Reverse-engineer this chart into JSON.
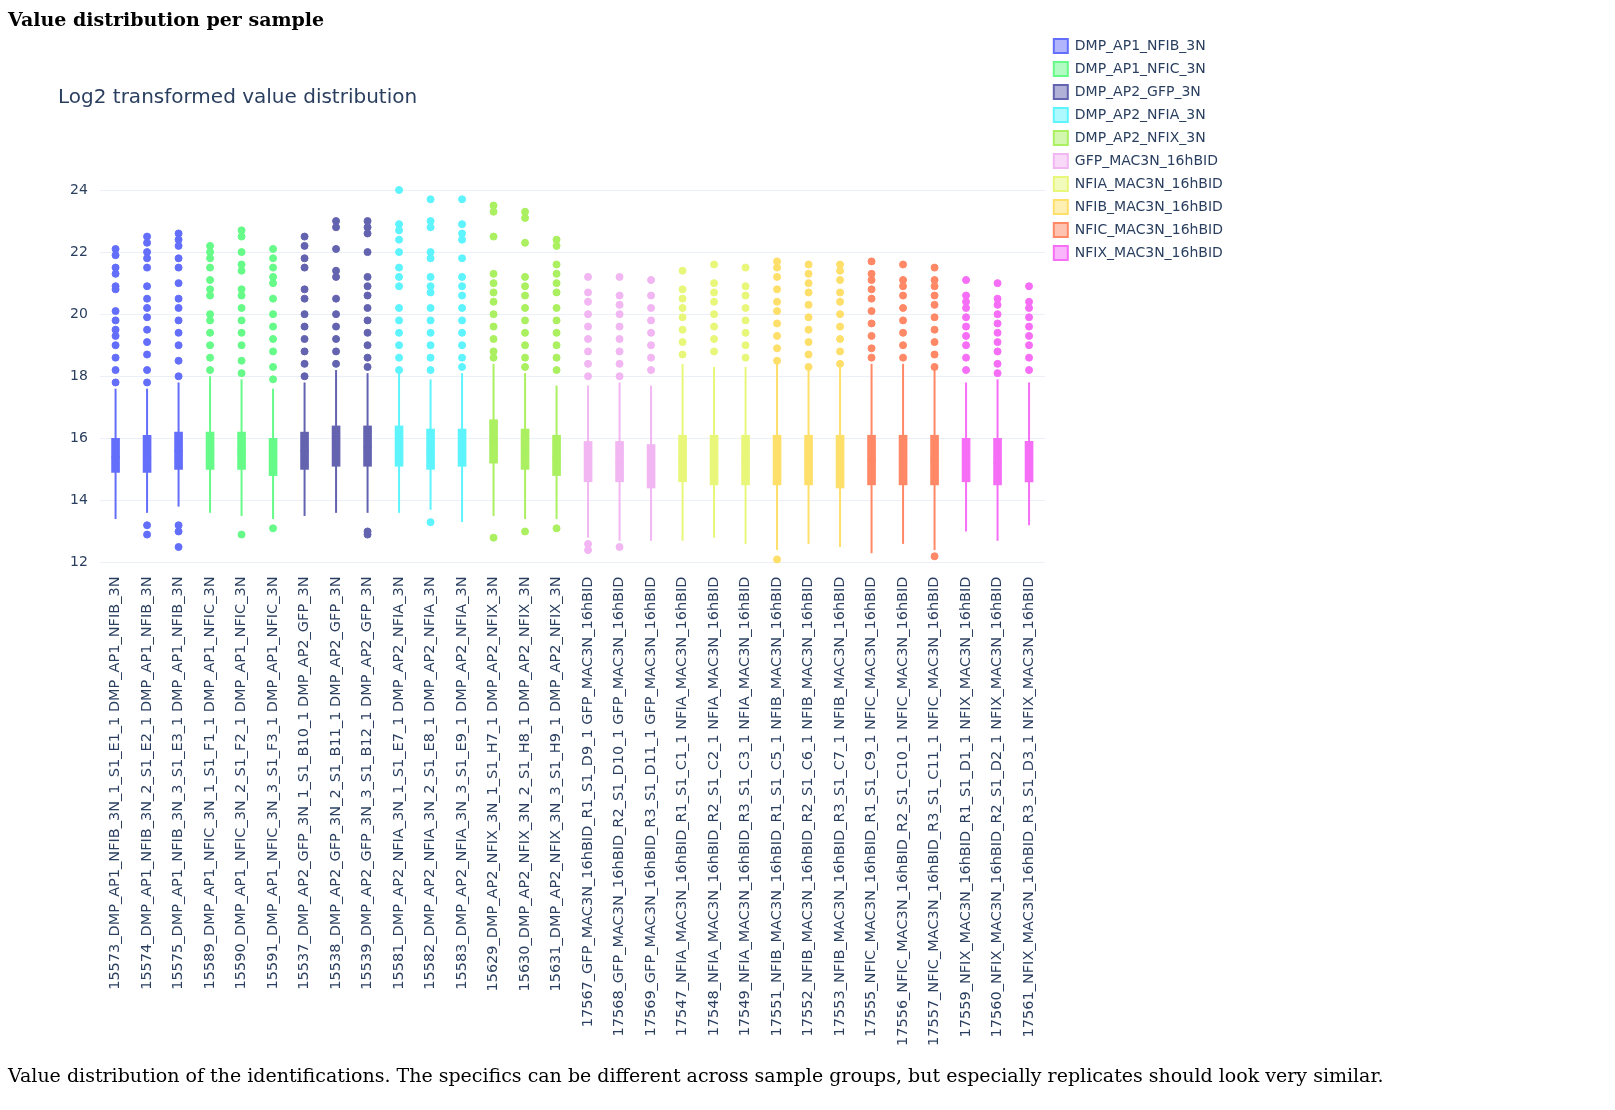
{
  "chart_data": {
    "type": "box",
    "title": "Value distribution per sample",
    "subtitle": "Log2 transformed value distribution",
    "annotations": [
      "Value distribution of the identifications. The specifics can be different across sample groups, but especially replicates should look very similar."
    ],
    "categories": [
      "15573_DMP_AP1_NFIB_3N_1_S1_E1_1 DMP_AP1_NFIB_3N",
      "15574_DMP_AP1_NFIB_3N_2_S1_E2_1 DMP_AP1_NFIB_3N",
      "15575_DMP_AP1_NFIB_3N_3_S1_E3_1 DMP_AP1_NFIB_3N",
      "15589_DMP_AP1_NFIC_3N_1_S1_F1_1 DMP_AP1_NFIC_3N",
      "15590_DMP_AP1_NFIC_3N_2_S1_F2_1 DMP_AP1_NFIC_3N",
      "15591_DMP_AP1_NFIC_3N_3_S1_F3_1 DMP_AP1_NFIC_3N",
      "15537_DMP_AP2_GFP_3N_1_S1_B10_1 DMP_AP2_GFP_3N",
      "15538_DMP_AP2_GFP_3N_2_S1_B11_1 DMP_AP2_GFP_3N",
      "15539_DMP_AP2_GFP_3N_3_S1_B12_1 DMP_AP2_GFP_3N",
      "15581_DMP_AP2_NFIA_3N_1_S1_E7_1 DMP_AP2_NFIA_3N",
      "15582_DMP_AP2_NFIA_3N_2_S1_E8_1 DMP_AP2_NFIA_3N",
      "15583_DMP_AP2_NFIA_3N_3_S1_E9_1 DMP_AP2_NFIA_3N",
      "15629_DMP_AP2_NFIX_3N_1_S1_H7_1 DMP_AP2_NFIX_3N",
      "15630_DMP_AP2_NFIX_3N_2_S1_H8_1 DMP_AP2_NFIX_3N",
      "15631_DMP_AP2_NFIX_3N_3_S1_H9_1 DMP_AP2_NFIX_3N",
      "17567_GFP_MAC3N_16hBID_R1_S1_D9_1 GFP_MAC3N_16hBID",
      "17568_GFP_MAC3N_16hBID_R2_S1_D10_1 GFP_MAC3N_16hBID",
      "17569_GFP_MAC3N_16hBID_R3_S1_D11_1 GFP_MAC3N_16hBID",
      "17547_NFIA_MAC3N_16hBID_R1_S1_C1_1 NFIA_MAC3N_16hBID",
      "17548_NFIA_MAC3N_16hBID_R2_S1_C2_1 NFIA_MAC3N_16hBID",
      "17549_NFIA_MAC3N_16hBID_R3_S1_C3_1 NFIA_MAC3N_16hBID",
      "17551_NFIB_MAC3N_16hBID_R1_S1_C5_1 NFIB_MAC3N_16hBID",
      "17552_NFIB_MAC3N_16hBID_R2_S1_C6_1 NFIB_MAC3N_16hBID",
      "17553_NFIB_MAC3N_16hBID_R3_S1_C7_1 NFIB_MAC3N_16hBID",
      "17555_NFIC_MAC3N_16hBID_R1_S1_C9_1 NFIC_MAC3N_16hBID",
      "17556_NFIC_MAC3N_16hBID_R2_S1_C10_1 NFIC_MAC3N_16hBID",
      "17557_NFIC_MAC3N_16hBID_R3_S1_C11_1 NFIC_MAC3N_16hBID",
      "17559_NFIX_MAC3N_16hBID_R1_S1_D1_1 NFIX_MAC3N_16hBID",
      "17560_NFIX_MAC3N_16hBID_R2_S1_D2_1 NFIX_MAC3N_16hBID",
      "17561_NFIX_MAC3N_16hBID_R3_S1_D3_1 NFIX_MAC3N_16hBID"
    ],
    "ylim": [
      12,
      24
    ],
    "yticks": [
      12,
      14,
      16,
      18,
      20,
      22,
      24
    ],
    "grid": "y",
    "legend": "top right",
    "marker": "circle",
    "series": [
      {
        "name": "DMP_AP1_NFIB_3N",
        "color": "#636efa",
        "boxes": [
          {
            "low": 13.4,
            "q1": 14.9,
            "median": 15.4,
            "q3": 16.0,
            "high": 17.6,
            "outliers": [
              22.1,
              21.9,
              21.5,
              21.3,
              20.9,
              20.8,
              20.1,
              19.8,
              19.5,
              19.3,
              19.0,
              18.6,
              18.2,
              17.8
            ]
          },
          {
            "low": 13.6,
            "q1": 14.9,
            "median": 15.4,
            "q3": 16.1,
            "high": 17.6,
            "outliers": [
              22.5,
              22.3,
              22.0,
              21.8,
              21.5,
              20.9,
              20.5,
              20.2,
              19.9,
              19.5,
              19.1,
              18.7,
              18.2,
              17.8,
              13.2,
              12.9
            ]
          },
          {
            "low": 13.8,
            "q1": 15.0,
            "median": 15.6,
            "q3": 16.2,
            "high": 17.8,
            "outliers": [
              22.6,
              22.4,
              22.2,
              21.8,
              21.5,
              21.0,
              20.5,
              20.2,
              19.8,
              19.4,
              19.0,
              18.5,
              18.0,
              13.2,
              13.0,
              12.5
            ]
          },
          null,
          null,
          null,
          null,
          null,
          null,
          null,
          null,
          null,
          null,
          null,
          null,
          null,
          null,
          null,
          null,
          null,
          null,
          null,
          null,
          null,
          null,
          null,
          null,
          null,
          null,
          null
        ]
      },
      {
        "name": "DMP_AP1_NFIC_3N",
        "color": "#66fa88",
        "boxes": [
          null,
          null,
          null,
          {
            "low": 13.6,
            "q1": 15.0,
            "median": 15.6,
            "q3": 16.2,
            "high": 18.0,
            "outliers": [
              22.2,
              22.0,
              21.8,
              21.5,
              21.1,
              20.8,
              20.6,
              20.0,
              19.8,
              19.4,
              19.0,
              18.6,
              18.2
            ]
          },
          {
            "low": 13.5,
            "q1": 15.0,
            "median": 15.6,
            "q3": 16.2,
            "high": 17.9,
            "outliers": [
              22.7,
              22.5,
              22.0,
              21.6,
              21.4,
              20.8,
              20.6,
              20.2,
              19.8,
              19.4,
              19.0,
              18.5,
              18.1,
              12.9
            ]
          },
          {
            "low": 13.4,
            "q1": 14.8,
            "median": 15.4,
            "q3": 16.0,
            "high": 17.6,
            "outliers": [
              22.1,
              21.8,
              21.5,
              21.2,
              21.0,
              20.5,
              20.0,
              19.6,
              19.2,
              18.8,
              18.3,
              17.9,
              13.1
            ]
          },
          null,
          null,
          null,
          null,
          null,
          null,
          null,
          null,
          null,
          null,
          null,
          null,
          null,
          null,
          null,
          null,
          null,
          null,
          null,
          null,
          null,
          null,
          null,
          null
        ]
      },
      {
        "name": "DMP_AP2_GFP_3N",
        "color": "#6363b0",
        "boxes": [
          null,
          null,
          null,
          null,
          null,
          null,
          {
            "low": 13.5,
            "q1": 15.0,
            "median": 15.6,
            "q3": 16.2,
            "high": 17.8,
            "outliers": [
              22.5,
              22.2,
              21.8,
              21.5,
              20.8,
              20.5,
              20.0,
              19.6,
              19.2,
              18.8,
              18.4,
              18.0
            ]
          },
          {
            "low": 13.6,
            "q1": 15.1,
            "median": 15.8,
            "q3": 16.4,
            "high": 18.2,
            "outliers": [
              23.0,
              22.8,
              22.1,
              21.4,
              21.2,
              20.5,
              20.0,
              19.6,
              19.2,
              18.8,
              18.4
            ]
          },
          {
            "low": 13.6,
            "q1": 15.1,
            "median": 15.7,
            "q3": 16.4,
            "high": 18.1,
            "outliers": [
              23.0,
              22.8,
              22.6,
              22.0,
              21.2,
              20.9,
              20.6,
              20.2,
              19.8,
              19.4,
              19.0,
              18.6,
              18.3,
              13.0,
              12.9
            ]
          },
          null,
          null,
          null,
          null,
          null,
          null,
          null,
          null,
          null,
          null,
          null,
          null,
          null,
          null,
          null,
          null,
          null,
          null,
          null,
          null,
          null
        ]
      },
      {
        "name": "DMP_AP2_NFIA_3N",
        "color": "#5ef4fe",
        "boxes": [
          null,
          null,
          null,
          null,
          null,
          null,
          null,
          null,
          null,
          {
            "low": 13.6,
            "q1": 15.1,
            "median": 15.7,
            "q3": 16.4,
            "high": 18.1,
            "outliers": [
              24.0,
              22.9,
              22.7,
              22.4,
              22.0,
              21.5,
              21.2,
              20.9,
              20.2,
              19.8,
              19.4,
              19.0,
              18.6,
              18.2
            ]
          },
          {
            "low": 13.7,
            "q1": 15.0,
            "median": 15.6,
            "q3": 16.3,
            "high": 17.9,
            "outliers": [
              23.7,
              23.0,
              22.8,
              22.0,
              21.8,
              21.2,
              20.9,
              20.7,
              20.2,
              19.8,
              19.4,
              19.0,
              18.6,
              18.2,
              13.3
            ]
          },
          {
            "low": 13.3,
            "q1": 15.1,
            "median": 15.7,
            "q3": 16.3,
            "high": 18.1,
            "outliers": [
              23.7,
              22.9,
              22.6,
              22.4,
              21.8,
              21.2,
              20.9,
              20.6,
              20.2,
              19.8,
              19.4,
              19.0,
              18.6,
              18.3
            ]
          },
          null,
          null,
          null,
          null,
          null,
          null,
          null,
          null,
          null,
          null,
          null,
          null,
          null,
          null,
          null,
          null,
          null,
          null
        ]
      },
      {
        "name": "DMP_AP2_NFIX_3N",
        "color": "#aaf060",
        "boxes": [
          null,
          null,
          null,
          null,
          null,
          null,
          null,
          null,
          null,
          null,
          null,
          null,
          {
            "low": 13.5,
            "q1": 15.2,
            "median": 15.9,
            "q3": 16.6,
            "high": 18.4,
            "outliers": [
              23.5,
              23.3,
              22.5,
              21.3,
              21.0,
              20.7,
              20.4,
              20.0,
              19.6,
              19.2,
              18.8,
              18.6,
              12.8
            ]
          },
          {
            "low": 13.4,
            "q1": 15.0,
            "median": 15.6,
            "q3": 16.3,
            "high": 18.1,
            "outliers": [
              23.3,
              23.1,
              22.3,
              21.2,
              20.9,
              20.6,
              20.2,
              19.8,
              19.4,
              19.0,
              18.6,
              18.3,
              13.0
            ]
          },
          {
            "low": 13.4,
            "q1": 14.8,
            "median": 15.4,
            "q3": 16.1,
            "high": 17.7,
            "outliers": [
              22.4,
              22.2,
              21.6,
              21.3,
              21.0,
              20.7,
              20.2,
              19.8,
              19.4,
              19.0,
              18.6,
              18.2,
              13.1
            ]
          },
          null,
          null,
          null,
          null,
          null,
          null,
          null,
          null,
          null,
          null,
          null,
          null,
          null,
          null,
          null
        ]
      },
      {
        "name": "GFP_MAC3N_16hBID",
        "color": "#f2b6f2",
        "boxes": [
          null,
          null,
          null,
          null,
          null,
          null,
          null,
          null,
          null,
          null,
          null,
          null,
          null,
          null,
          null,
          {
            "low": 12.8,
            "q1": 14.6,
            "median": 15.2,
            "q3": 15.9,
            "high": 17.7,
            "outliers": [
              21.2,
              20.7,
              20.4,
              20.0,
              19.6,
              19.2,
              18.8,
              18.4,
              18.0,
              12.6,
              12.4
            ]
          },
          {
            "low": 12.7,
            "q1": 14.6,
            "median": 15.2,
            "q3": 15.9,
            "high": 17.8,
            "outliers": [
              21.2,
              20.6,
              20.3,
              20.0,
              19.6,
              19.2,
              18.8,
              18.4,
              18.0,
              12.5
            ]
          },
          {
            "low": 12.7,
            "q1": 14.4,
            "median": 15.1,
            "q3": 15.8,
            "high": 17.7,
            "outliers": [
              21.1,
              20.6,
              20.2,
              19.8,
              19.4,
              19.0,
              18.6,
              18.2
            ]
          },
          null,
          null,
          null,
          null,
          null,
          null,
          null,
          null,
          null,
          null,
          null,
          null
        ]
      },
      {
        "name": "NFIA_MAC3N_16hBID",
        "color": "#e8f77a",
        "boxes": [
          null,
          null,
          null,
          null,
          null,
          null,
          null,
          null,
          null,
          null,
          null,
          null,
          null,
          null,
          null,
          null,
          null,
          null,
          {
            "low": 12.7,
            "q1": 14.6,
            "median": 15.3,
            "q3": 16.1,
            "high": 18.4,
            "outliers": [
              21.4,
              20.8,
              20.5,
              20.2,
              19.9,
              19.5,
              19.1,
              18.7
            ]
          },
          {
            "low": 12.8,
            "q1": 14.5,
            "median": 15.3,
            "q3": 16.1,
            "high": 18.3,
            "outliers": [
              21.6,
              21.0,
              20.7,
              20.4,
              20.0,
              19.6,
              19.2,
              18.8
            ]
          },
          {
            "low": 12.6,
            "q1": 14.5,
            "median": 15.3,
            "q3": 16.1,
            "high": 18.3,
            "outliers": [
              21.5,
              20.9,
              20.6,
              20.2,
              19.8,
              19.4,
              19.0,
              18.6
            ]
          },
          null,
          null,
          null,
          null,
          null,
          null,
          null,
          null,
          null
        ]
      },
      {
        "name": "NFIB_MAC3N_16hBID",
        "color": "#fedf6a",
        "boxes": [
          null,
          null,
          null,
          null,
          null,
          null,
          null,
          null,
          null,
          null,
          null,
          null,
          null,
          null,
          null,
          null,
          null,
          null,
          null,
          null,
          null,
          {
            "low": 12.4,
            "q1": 14.5,
            "median": 15.3,
            "q3": 16.1,
            "high": 18.4,
            "outliers": [
              21.7,
              21.5,
              21.2,
              20.8,
              20.4,
              20.1,
              19.7,
              19.3,
              18.9,
              18.5,
              12.1
            ]
          },
          {
            "low": 12.6,
            "q1": 14.5,
            "median": 15.3,
            "q3": 16.1,
            "high": 18.2,
            "outliers": [
              21.6,
              21.3,
              21.0,
              20.7,
              20.3,
              19.9,
              19.5,
              19.1,
              18.7,
              18.3
            ]
          },
          {
            "low": 12.5,
            "q1": 14.4,
            "median": 15.2,
            "q3": 16.1,
            "high": 18.3,
            "outliers": [
              21.6,
              21.4,
              21.1,
              20.7,
              20.4,
              20.0,
              19.6,
              19.2,
              18.8,
              18.4
            ]
          },
          null,
          null,
          null,
          null,
          null,
          null
        ]
      },
      {
        "name": "NFIC_MAC3N_16hBID",
        "color": "#ff8866",
        "boxes": [
          null,
          null,
          null,
          null,
          null,
          null,
          null,
          null,
          null,
          null,
          null,
          null,
          null,
          null,
          null,
          null,
          null,
          null,
          null,
          null,
          null,
          null,
          null,
          null,
          {
            "low": 12.3,
            "q1": 14.5,
            "median": 15.3,
            "q3": 16.1,
            "high": 18.4,
            "outliers": [
              21.7,
              21.3,
              21.1,
              20.8,
              20.5,
              20.1,
              19.7,
              19.3,
              18.9,
              18.6
            ]
          },
          {
            "low": 12.6,
            "q1": 14.5,
            "median": 15.3,
            "q3": 16.1,
            "high": 18.4,
            "outliers": [
              21.6,
              21.1,
              20.9,
              20.6,
              20.2,
              19.8,
              19.4,
              19.0,
              18.6
            ]
          },
          {
            "low": 12.4,
            "q1": 14.5,
            "median": 15.3,
            "q3": 16.1,
            "high": 18.2,
            "outliers": [
              21.5,
              21.1,
              20.9,
              20.6,
              20.3,
              19.9,
              19.5,
              19.1,
              18.7,
              18.3,
              12.2
            ]
          },
          null,
          null,
          null
        ]
      },
      {
        "name": "NFIX_MAC3N_16hBID",
        "color": "#f66ef6",
        "boxes": [
          null,
          null,
          null,
          null,
          null,
          null,
          null,
          null,
          null,
          null,
          null,
          null,
          null,
          null,
          null,
          null,
          null,
          null,
          null,
          null,
          null,
          null,
          null,
          null,
          null,
          null,
          null,
          {
            "low": 13.0,
            "q1": 14.6,
            "median": 15.3,
            "q3": 16.0,
            "high": 17.8,
            "outliers": [
              21.1,
              20.6,
              20.4,
              20.2,
              19.9,
              19.6,
              19.3,
              19.0,
              18.6,
              18.2
            ]
          },
          {
            "low": 12.7,
            "q1": 14.5,
            "median": 15.2,
            "q3": 16.0,
            "high": 17.9,
            "outliers": [
              21.0,
              20.5,
              20.3,
              20.0,
              19.7,
              19.4,
              19.1,
              18.8,
              18.4,
              18.1
            ]
          },
          {
            "low": 13.2,
            "q1": 14.6,
            "median": 15.2,
            "q3": 15.9,
            "high": 17.8,
            "outliers": [
              20.9,
              20.4,
              20.2,
              19.9,
              19.6,
              19.3,
              19.0,
              18.6,
              18.2
            ]
          }
        ]
      }
    ]
  }
}
